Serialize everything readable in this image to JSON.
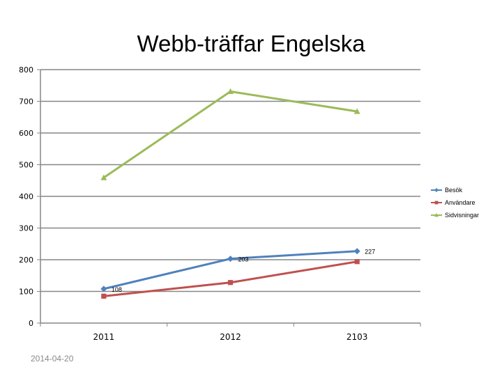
{
  "slide": {
    "date": "2014-04-20"
  },
  "chart_data": {
    "type": "line",
    "title": "Webb-träffar Engelska",
    "categories": [
      "2011",
      "2012",
      "2103"
    ],
    "ylim": [
      0,
      800
    ],
    "yticks": [
      0,
      100,
      200,
      300,
      400,
      500,
      600,
      700,
      800
    ],
    "grid": true,
    "legend": "right",
    "series": [
      {
        "name": "Besök",
        "values": [
          108,
          203,
          227
        ],
        "color": "#4f81bd",
        "marker": "diamond",
        "labels": [
          "108",
          "203",
          "227"
        ]
      },
      {
        "name": "Användare",
        "values": [
          85,
          128,
          194
        ],
        "color": "#c0504d",
        "marker": "square",
        "labels": [
          "",
          "",
          ""
        ]
      },
      {
        "name": "Sidvisningar",
        "values": [
          459,
          731,
          668
        ],
        "color": "#9bbb59",
        "marker": "triangle",
        "labels": [
          "",
          "",
          ""
        ]
      }
    ]
  }
}
